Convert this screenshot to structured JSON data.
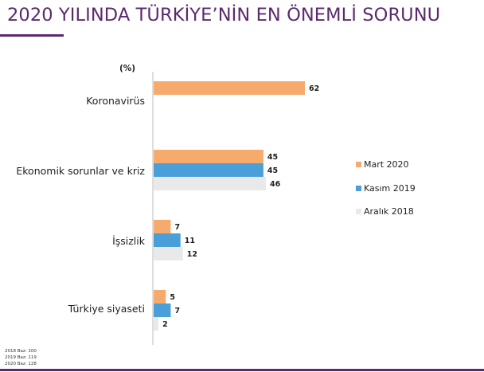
{
  "header": {
    "title": "2020 YILINDA TÜRKİYE’NİN EN ÖNEMLİ SORUNU"
  },
  "chart_data": {
    "type": "bar",
    "orientation": "horizontal",
    "unit_label": "(%)",
    "categories": [
      "Koronavirüs",
      "Ekonomik sorunlar ve kriz",
      "İşsizlik",
      "Türkiye siyaseti"
    ],
    "series": [
      {
        "name": "Mart 2020",
        "color": "#F6AB6C",
        "values": [
          62,
          45,
          7,
          5
        ]
      },
      {
        "name": "Kasım 2019",
        "color": "#4A9FD9",
        "values": [
          null,
          45,
          11,
          7
        ]
      },
      {
        "name": "Aralık 2018",
        "color": "#E9E9E9",
        "values": [
          null,
          46,
          12,
          2
        ]
      }
    ],
    "xlim": [
      0,
      62
    ],
    "legend_position": "right",
    "grid": false
  },
  "footnotes": [
    "2018 Baz: 100",
    "2019 Baz: 119",
    "2020 Baz: 128"
  ]
}
